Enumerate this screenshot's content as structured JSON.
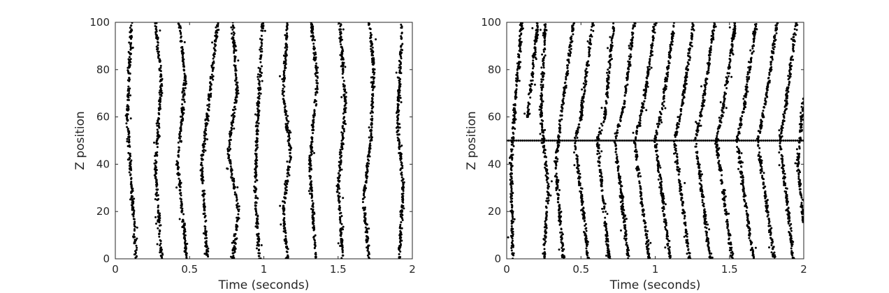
{
  "chart_data": [
    {
      "type": "scatter",
      "title": "",
      "xlabel": "Time (seconds)",
      "ylabel": "Z position",
      "xlim": [
        0,
        2
      ],
      "ylim": [
        0,
        100
      ],
      "xticks": [
        "0",
        "0.5",
        "1",
        "1.5",
        "2"
      ],
      "yticks": [
        "0",
        "20",
        "40",
        "60",
        "80",
        "100"
      ],
      "marker_color": "#000000",
      "grid": false,
      "legend": "none",
      "description_note": "",
      "series": [
        {
          "kind": "zigzag",
          "values": [
            [
              0.14,
              0
            ],
            [
              0.08,
              60
            ],
            [
              0.11,
              100
            ]
          ]
        },
        {
          "kind": "zigzag",
          "values": [
            [
              0.31,
              0
            ],
            [
              0.27,
              40
            ],
            [
              0.31,
              75
            ],
            [
              0.27,
              100
            ]
          ]
        },
        {
          "kind": "zigzag",
          "values": [
            [
              0.48,
              0
            ],
            [
              0.42,
              40
            ],
            [
              0.47,
              75
            ],
            [
              0.43,
              100
            ]
          ]
        },
        {
          "kind": "zigzag",
          "values": [
            [
              0.62,
              0
            ],
            [
              0.58,
              40
            ],
            [
              0.62,
              60
            ],
            [
              0.69,
              100
            ]
          ]
        },
        {
          "kind": "zigzag",
          "values": [
            [
              0.79,
              0
            ],
            [
              0.83,
              20
            ],
            [
              0.76,
              45
            ],
            [
              0.82,
              70
            ],
            [
              0.79,
              100
            ]
          ]
        },
        {
          "kind": "zigzag",
          "values": [
            [
              0.97,
              0
            ],
            [
              0.94,
              30
            ],
            [
              0.96,
              60
            ],
            [
              0.99,
              100
            ]
          ]
        },
        {
          "kind": "zigzag",
          "values": [
            [
              1.16,
              0
            ],
            [
              1.13,
              20
            ],
            [
              1.18,
              45
            ],
            [
              1.13,
              70
            ],
            [
              1.16,
              100
            ]
          ]
        },
        {
          "kind": "zigzag",
          "values": [
            [
              1.35,
              0
            ],
            [
              1.31,
              40
            ],
            [
              1.36,
              75
            ],
            [
              1.32,
              100
            ]
          ]
        },
        {
          "kind": "zigzag",
          "values": [
            [
              1.53,
              0
            ],
            [
              1.5,
              30
            ],
            [
              1.55,
              65
            ],
            [
              1.51,
              100
            ]
          ]
        },
        {
          "kind": "zigzag",
          "values": [
            [
              1.71,
              0
            ],
            [
              1.67,
              25
            ],
            [
              1.72,
              50
            ],
            [
              1.74,
              80
            ],
            [
              1.71,
              100
            ]
          ]
        },
        {
          "kind": "zigzag",
          "values": [
            [
              1.91,
              0
            ],
            [
              1.94,
              30
            ],
            [
              1.9,
              55
            ],
            [
              1.93,
              100
            ]
          ]
        }
      ]
    },
    {
      "type": "scatter",
      "title": "",
      "xlabel": "Time (seconds)",
      "ylabel": "Z position",
      "xlim": [
        0,
        2
      ],
      "ylim": [
        0,
        100
      ],
      "xticks": [
        "0",
        "0.5",
        "1",
        "1.5",
        "2"
      ],
      "yticks": [
        "0",
        "20",
        "40",
        "60",
        "80",
        "100"
      ],
      "marker_color": "#000000",
      "grid": false,
      "legend": "none",
      "series": [
        {
          "kind": "zigzag",
          "values": [
            [
              0.04,
              0
            ],
            [
              0.03,
              40
            ],
            [
              0.05,
              60
            ],
            [
              0.1,
              100
            ]
          ]
        },
        {
          "kind": "zigzag",
          "values": [
            [
              0.14,
              60
            ],
            [
              0.21,
              100
            ]
          ]
        },
        {
          "kind": "zigzag",
          "values": [
            [
              0.25,
              0
            ],
            [
              0.28,
              30
            ],
            [
              0.23,
              60
            ],
            [
              0.26,
              100
            ]
          ]
        },
        {
          "kind": "zigzag",
          "values": [
            [
              0.38,
              0
            ],
            [
              0.33,
              40
            ],
            [
              0.37,
              62
            ],
            [
              0.45,
              100
            ]
          ]
        },
        {
          "kind": "zigzag",
          "values": [
            [
              0.55,
              0
            ],
            [
              0.46,
              50
            ],
            [
              0.5,
              60
            ],
            [
              0.58,
              100
            ]
          ]
        },
        {
          "kind": "zigzag",
          "values": [
            [
              0.69,
              0
            ],
            [
              0.61,
              50
            ],
            [
              0.66,
              60
            ],
            [
              0.72,
              100
            ]
          ]
        },
        {
          "kind": "zigzag",
          "values": [
            [
              0.82,
              0
            ],
            [
              0.73,
              50
            ],
            [
              0.79,
              65
            ],
            [
              0.86,
              100
            ]
          ]
        },
        {
          "kind": "zigzag",
          "values": [
            [
              0.96,
              0
            ],
            [
              0.86,
              50
            ],
            [
              0.92,
              65
            ],
            [
              1.0,
              100
            ]
          ]
        },
        {
          "kind": "zigzag",
          "values": [
            [
              1.1,
              0
            ],
            [
              1.0,
              50
            ],
            [
              1.05,
              65
            ],
            [
              1.13,
              100
            ]
          ]
        },
        {
          "kind": "zigzag",
          "values": [
            [
              1.23,
              0
            ],
            [
              1.13,
              50
            ],
            [
              1.18,
              65
            ],
            [
              1.26,
              100
            ]
          ]
        },
        {
          "kind": "zigzag",
          "values": [
            [
              1.37,
              0
            ],
            [
              1.27,
              50
            ],
            [
              1.32,
              65
            ],
            [
              1.4,
              100
            ]
          ]
        },
        {
          "kind": "zigzag",
          "values": [
            [
              1.52,
              0
            ],
            [
              1.41,
              50
            ],
            [
              1.46,
              65
            ],
            [
              1.54,
              100
            ]
          ]
        },
        {
          "kind": "zigzag",
          "values": [
            [
              1.66,
              0
            ],
            [
              1.55,
              50
            ],
            [
              1.6,
              65
            ],
            [
              1.68,
              100
            ]
          ]
        },
        {
          "kind": "zigzag",
          "values": [
            [
              1.8,
              0
            ],
            [
              1.69,
              50
            ],
            [
              1.74,
              65
            ],
            [
              1.82,
              100
            ]
          ]
        },
        {
          "kind": "zigzag",
          "values": [
            [
              1.93,
              0
            ],
            [
              1.84,
              50
            ],
            [
              1.88,
              65
            ],
            [
              1.95,
              100
            ]
          ]
        },
        {
          "kind": "zigzag",
          "values": [
            [
              2.0,
              15
            ],
            [
              1.96,
              40
            ],
            [
              1.98,
              55
            ],
            [
              2.0,
              68
            ]
          ]
        },
        {
          "kind": "horizontal",
          "values": [
            [
              0.0,
              50
            ],
            [
              2.0,
              50
            ]
          ]
        }
      ]
    }
  ]
}
